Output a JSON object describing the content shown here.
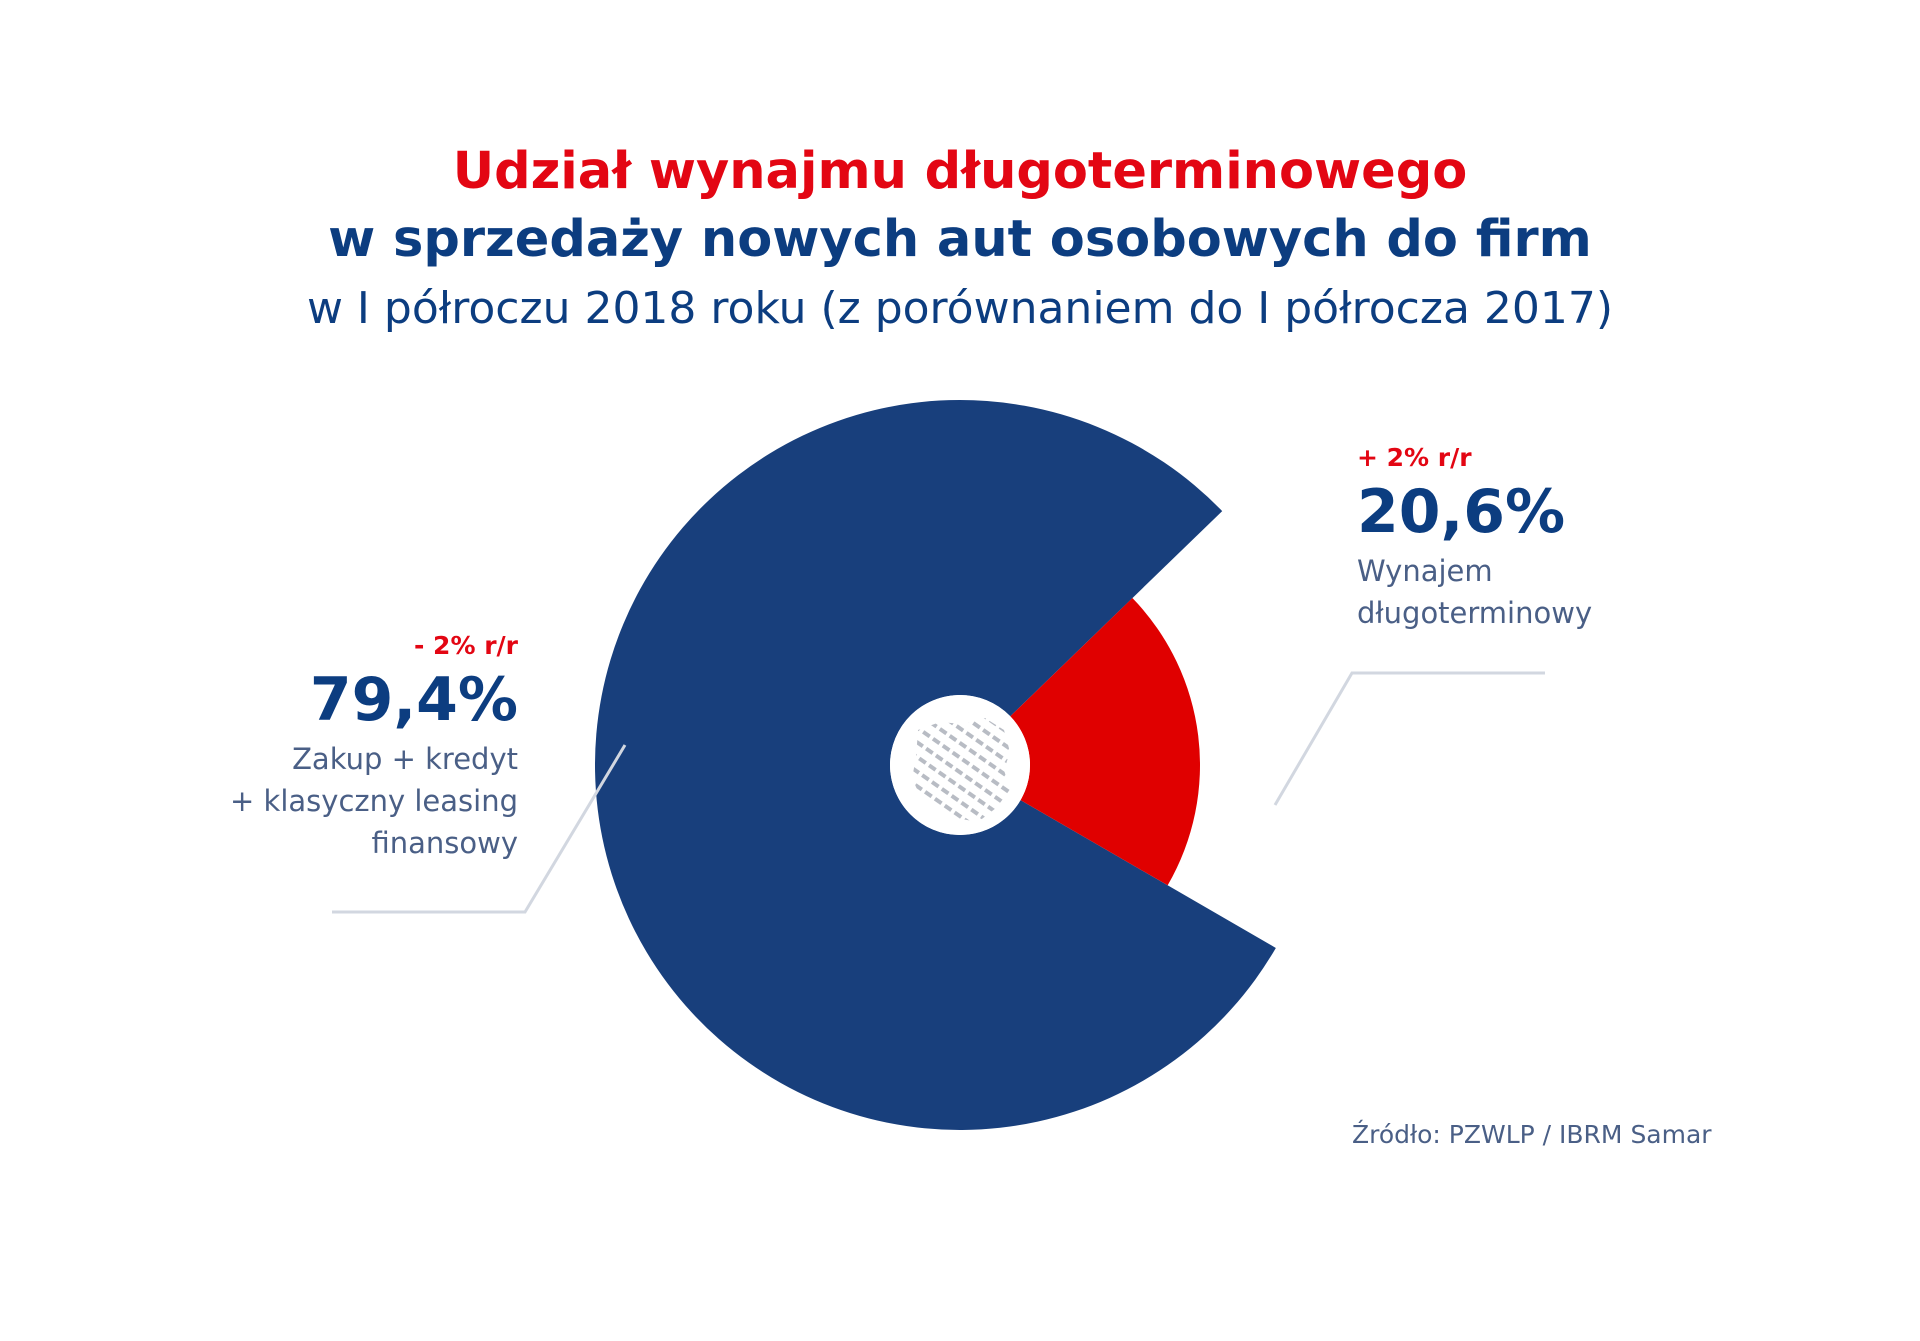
{
  "title": {
    "line1": "Udział wynajmu długoterminowego",
    "line2": "w sprzedaży nowych aut osobowych do firm",
    "line3": "w I półroczu 2018 roku (z porównaniem do I półrocza 2017)"
  },
  "chart_data": {
    "type": "pie",
    "subtype": "donut",
    "slices": [
      {
        "label_lines": [
          "Zakup + kredyt",
          "+ klasyczny leasing",
          "finansowy"
        ],
        "value": 79.4,
        "value_label": "79,4%",
        "change": "- 2% r/r",
        "color": "#183f7c"
      },
      {
        "label_lines": [
          "Wynajem",
          "długoterminowy"
        ],
        "value": 20.6,
        "value_label": "20,6%",
        "change": "+ 2% r/r",
        "color": "#e00000"
      }
    ]
  },
  "source": "Źródło: PZWLP / IBRM Samar",
  "colors": {
    "accent_red": "#e30613",
    "brand_blue": "#0c3d80",
    "muted_text": "#4a5f86",
    "leader_line": "#d2d7e0"
  }
}
